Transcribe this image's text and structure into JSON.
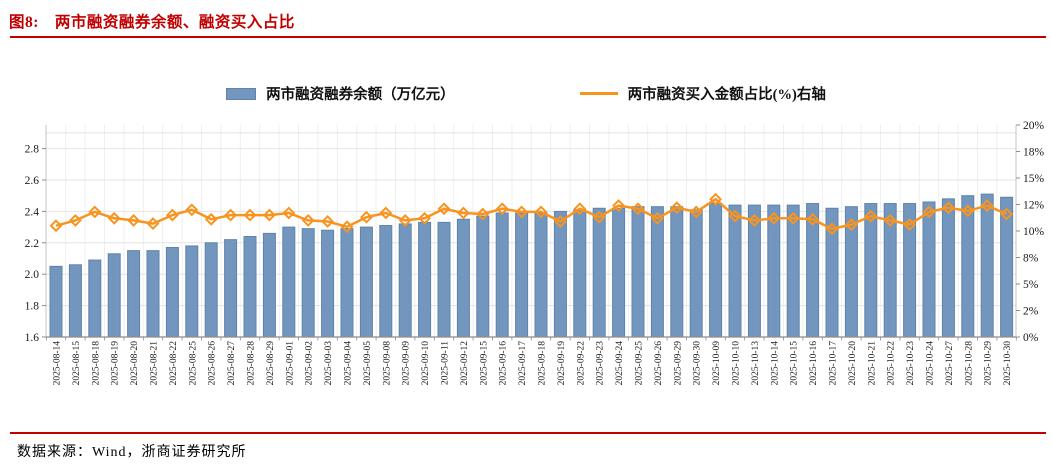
{
  "header": {
    "figure_label": "图8:",
    "title": "两市融资融券余额、融资买入占比"
  },
  "legend": {
    "bar_label": "两市融资融券余额（万亿元）",
    "line_label": "两市融资买入金额占比(%)右轴"
  },
  "source": {
    "text": "数据来源：Wind，浙商证券研究所"
  },
  "colors": {
    "bar_fill": "#7396BF",
    "bar_border": "#5C84AC",
    "line": "#F79420",
    "title_red": "#C00000",
    "grid": "#E4E4E4",
    "grid_vertical": "#EFEFEF",
    "axis_bottom": "#8C8C8C",
    "axis_side": "#C4C4C4",
    "text": "#1A1A1A"
  },
  "chart_data": {
    "type": "bar+line",
    "title": "两市融资融券余额、融资买入占比",
    "categories": [
      "2025-08-14",
      "2025-08-15",
      "2025-08-18",
      "2025-08-19",
      "2025-08-20",
      "2025-08-21",
      "2025-08-22",
      "2025-08-25",
      "2025-08-26",
      "2025-08-27",
      "2025-08-28",
      "2025-08-29",
      "2025-09-01",
      "2025-09-02",
      "2025-09-03",
      "2025-09-04",
      "2025-09-05",
      "2025-09-08",
      "2025-09-09",
      "2025-09-10",
      "2025-09-11",
      "2025-09-12",
      "2025-09-15",
      "2025-09-16",
      "2025-09-17",
      "2025-09-18",
      "2025-09-19",
      "2025-09-22",
      "2025-09-23",
      "2025-09-24",
      "2025-09-25",
      "2025-09-26",
      "2025-09-29",
      "2025-09-30",
      "2025-10-09",
      "2025-10-10",
      "2025-10-13",
      "2025-10-14",
      "2025-10-15",
      "2025-10-16",
      "2025-10-17",
      "2025-10-20",
      "2025-10-21",
      "2025-10-22",
      "2025-10-23",
      "2025-10-24",
      "2025-10-27",
      "2025-10-28",
      "2025-10-29",
      "2025-10-30"
    ],
    "series": [
      {
        "name": "两市融资融券余额（万亿元）",
        "type": "bar",
        "axis": "left",
        "values": [
          2.05,
          2.06,
          2.09,
          2.13,
          2.15,
          2.15,
          2.17,
          2.18,
          2.2,
          2.22,
          2.24,
          2.26,
          2.3,
          2.29,
          2.28,
          2.29,
          2.3,
          2.31,
          2.32,
          2.33,
          2.33,
          2.35,
          2.37,
          2.39,
          2.39,
          2.39,
          2.4,
          2.41,
          2.42,
          2.42,
          2.43,
          2.43,
          2.43,
          2.41,
          2.45,
          2.44,
          2.44,
          2.44,
          2.44,
          2.45,
          2.42,
          2.43,
          2.45,
          2.45,
          2.45,
          2.46,
          2.48,
          2.5,
          2.51,
          2.49
        ]
      },
      {
        "name": "两市融资买入金额占比(%)右轴",
        "type": "line",
        "axis": "right",
        "values": [
          10.5,
          11.0,
          11.8,
          11.2,
          11.0,
          10.7,
          11.5,
          12.0,
          11.1,
          11.5,
          11.5,
          11.5,
          11.7,
          11.0,
          10.9,
          10.4,
          11.3,
          11.7,
          11.0,
          11.2,
          12.1,
          11.7,
          11.6,
          12.1,
          11.8,
          11.8,
          10.9,
          12.1,
          11.3,
          12.4,
          12.1,
          11.2,
          12.2,
          11.8,
          13.0,
          11.4,
          11.0,
          11.2,
          11.2,
          11.1,
          10.2,
          10.6,
          11.4,
          11.0,
          10.6,
          11.8,
          12.2,
          11.9,
          12.4,
          11.6
        ]
      }
    ],
    "left_axis": {
      "min": 1.6,
      "tick_step": 0.2,
      "tick_labels": [
        "1.6",
        "1.8",
        "2.0",
        "2.2",
        "2.4",
        "2.6",
        "2.8"
      ]
    },
    "right_axis": {
      "min": 0,
      "max": 20,
      "tick_labels": [
        "0%",
        "2%",
        "5%",
        "8%",
        "10%",
        "12%",
        "15%",
        "18%",
        "20%"
      ]
    },
    "grid": "on",
    "legend_position": "top"
  }
}
